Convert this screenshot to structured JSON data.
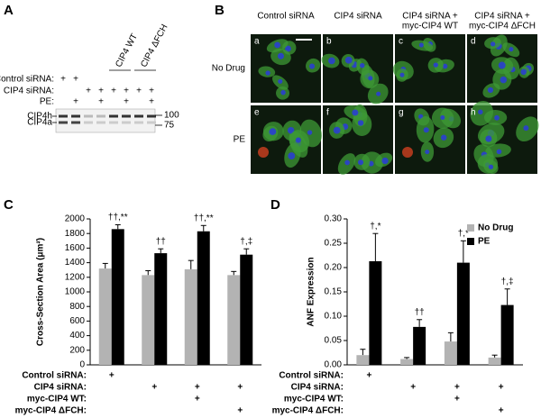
{
  "panels": {
    "A": {
      "label": "A",
      "rows": [
        {
          "label": "Control siRNA:",
          "marks": [
            "+",
            "+",
            null,
            null,
            null,
            null,
            null,
            null
          ]
        },
        {
          "label": "CIP4 siRNA:",
          "marks": [
            null,
            null,
            "+",
            "+",
            "+",
            "+",
            "+",
            "+"
          ]
        },
        {
          "label": "PE:",
          "marks": [
            null,
            "+",
            null,
            "+",
            null,
            "+",
            null,
            "+"
          ]
        }
      ],
      "constructs": [
        "CIP4 WT",
        "CIP4 ΔFCH"
      ],
      "bands": [
        "CIP4h",
        "CIP4a"
      ],
      "markers": [
        100,
        75
      ]
    },
    "B": {
      "label": "B",
      "columns": [
        [
          "Control siRNA"
        ],
        [
          "CIP4 siRNA"
        ],
        [
          "CIP4 siRNA +",
          "myc-CIP4 WT"
        ],
        [
          "CIP4 siRNA +",
          "myc-CIP4 ΔFCH"
        ]
      ],
      "rows": [
        "No Drug",
        "PE"
      ],
      "letters": [
        "a",
        "b",
        "c",
        "d",
        "e",
        "f",
        "g",
        "h"
      ]
    }
  },
  "chart_data": [
    {
      "type": "bar",
      "panel": "C",
      "y_label": "Cross-Section Area (μm²)",
      "categories": [
        null,
        null,
        null,
        null
      ],
      "series": [
        {
          "color": "#b3b3b3",
          "values": [
            1320,
            1230,
            1310,
            1230
          ],
          "errors": [
            70,
            60,
            120,
            50
          ]
        },
        {
          "color": "#000000",
          "values": [
            1860,
            1530,
            1830,
            1510
          ],
          "errors": [
            60,
            60,
            80,
            80
          ]
        }
      ],
      "annotations": [
        "††,**",
        "††",
        "††,**",
        "†,‡"
      ],
      "ylim": [
        0,
        2000
      ],
      "yticks": [
        0,
        200,
        400,
        600,
        800,
        1000,
        1200,
        1400,
        1600,
        1800,
        2000
      ],
      "conditions": [
        {
          "label": "Control siRNA:",
          "marks": [
            "+",
            null,
            null,
            null
          ]
        },
        {
          "label": "CIP4 siRNA:",
          "marks": [
            null,
            "+",
            "+",
            "+"
          ]
        },
        {
          "label": "myc-CIP4 WT:",
          "marks": [
            null,
            null,
            "+",
            null
          ]
        },
        {
          "label": "myc-CIP4 ΔFCH:",
          "marks": [
            null,
            null,
            null,
            "+"
          ]
        }
      ]
    },
    {
      "type": "bar",
      "panel": "D",
      "y_label": "ANF Expression",
      "categories": [
        null,
        null,
        null,
        null
      ],
      "series": [
        {
          "name": "No Drug",
          "color": "#b3b3b3",
          "values": [
            0.02,
            0.012,
            0.048,
            0.015
          ],
          "errors": [
            0.012,
            0.003,
            0.018,
            0.005
          ]
        },
        {
          "name": "PE",
          "color": "#000000",
          "values": [
            0.213,
            0.078,
            0.21,
            0.123
          ],
          "errors": [
            0.057,
            0.015,
            0.045,
            0.033
          ]
        }
      ],
      "annotations": [
        "†,*",
        "††",
        "†,*",
        "†,‡"
      ],
      "ylim": [
        0,
        0.3
      ],
      "yticks": [
        {
          "value": 0,
          "label": "0.00"
        },
        {
          "value": 0.05,
          "label": "0.05"
        },
        {
          "value": 0.1,
          "label": "0.10"
        },
        {
          "value": 0.15,
          "label": "0.15"
        },
        {
          "value": 0.2,
          "label": "0.20"
        },
        {
          "value": 0.25,
          "label": "0.25"
        },
        {
          "value": 0.3,
          "label": "0.30"
        }
      ],
      "legend": "upper right",
      "conditions": [
        {
          "label": "Control siRNA:",
          "marks": [
            "+",
            null,
            null,
            null
          ]
        },
        {
          "label": "CIP4 siRNA:",
          "marks": [
            null,
            "+",
            "+",
            "+"
          ]
        },
        {
          "label": "myc-CIP4 WT:",
          "marks": [
            null,
            null,
            "+",
            null
          ]
        },
        {
          "label": "myc-CIP4 ΔFCH:",
          "marks": [
            null,
            null,
            null,
            "+"
          ]
        }
      ]
    }
  ]
}
